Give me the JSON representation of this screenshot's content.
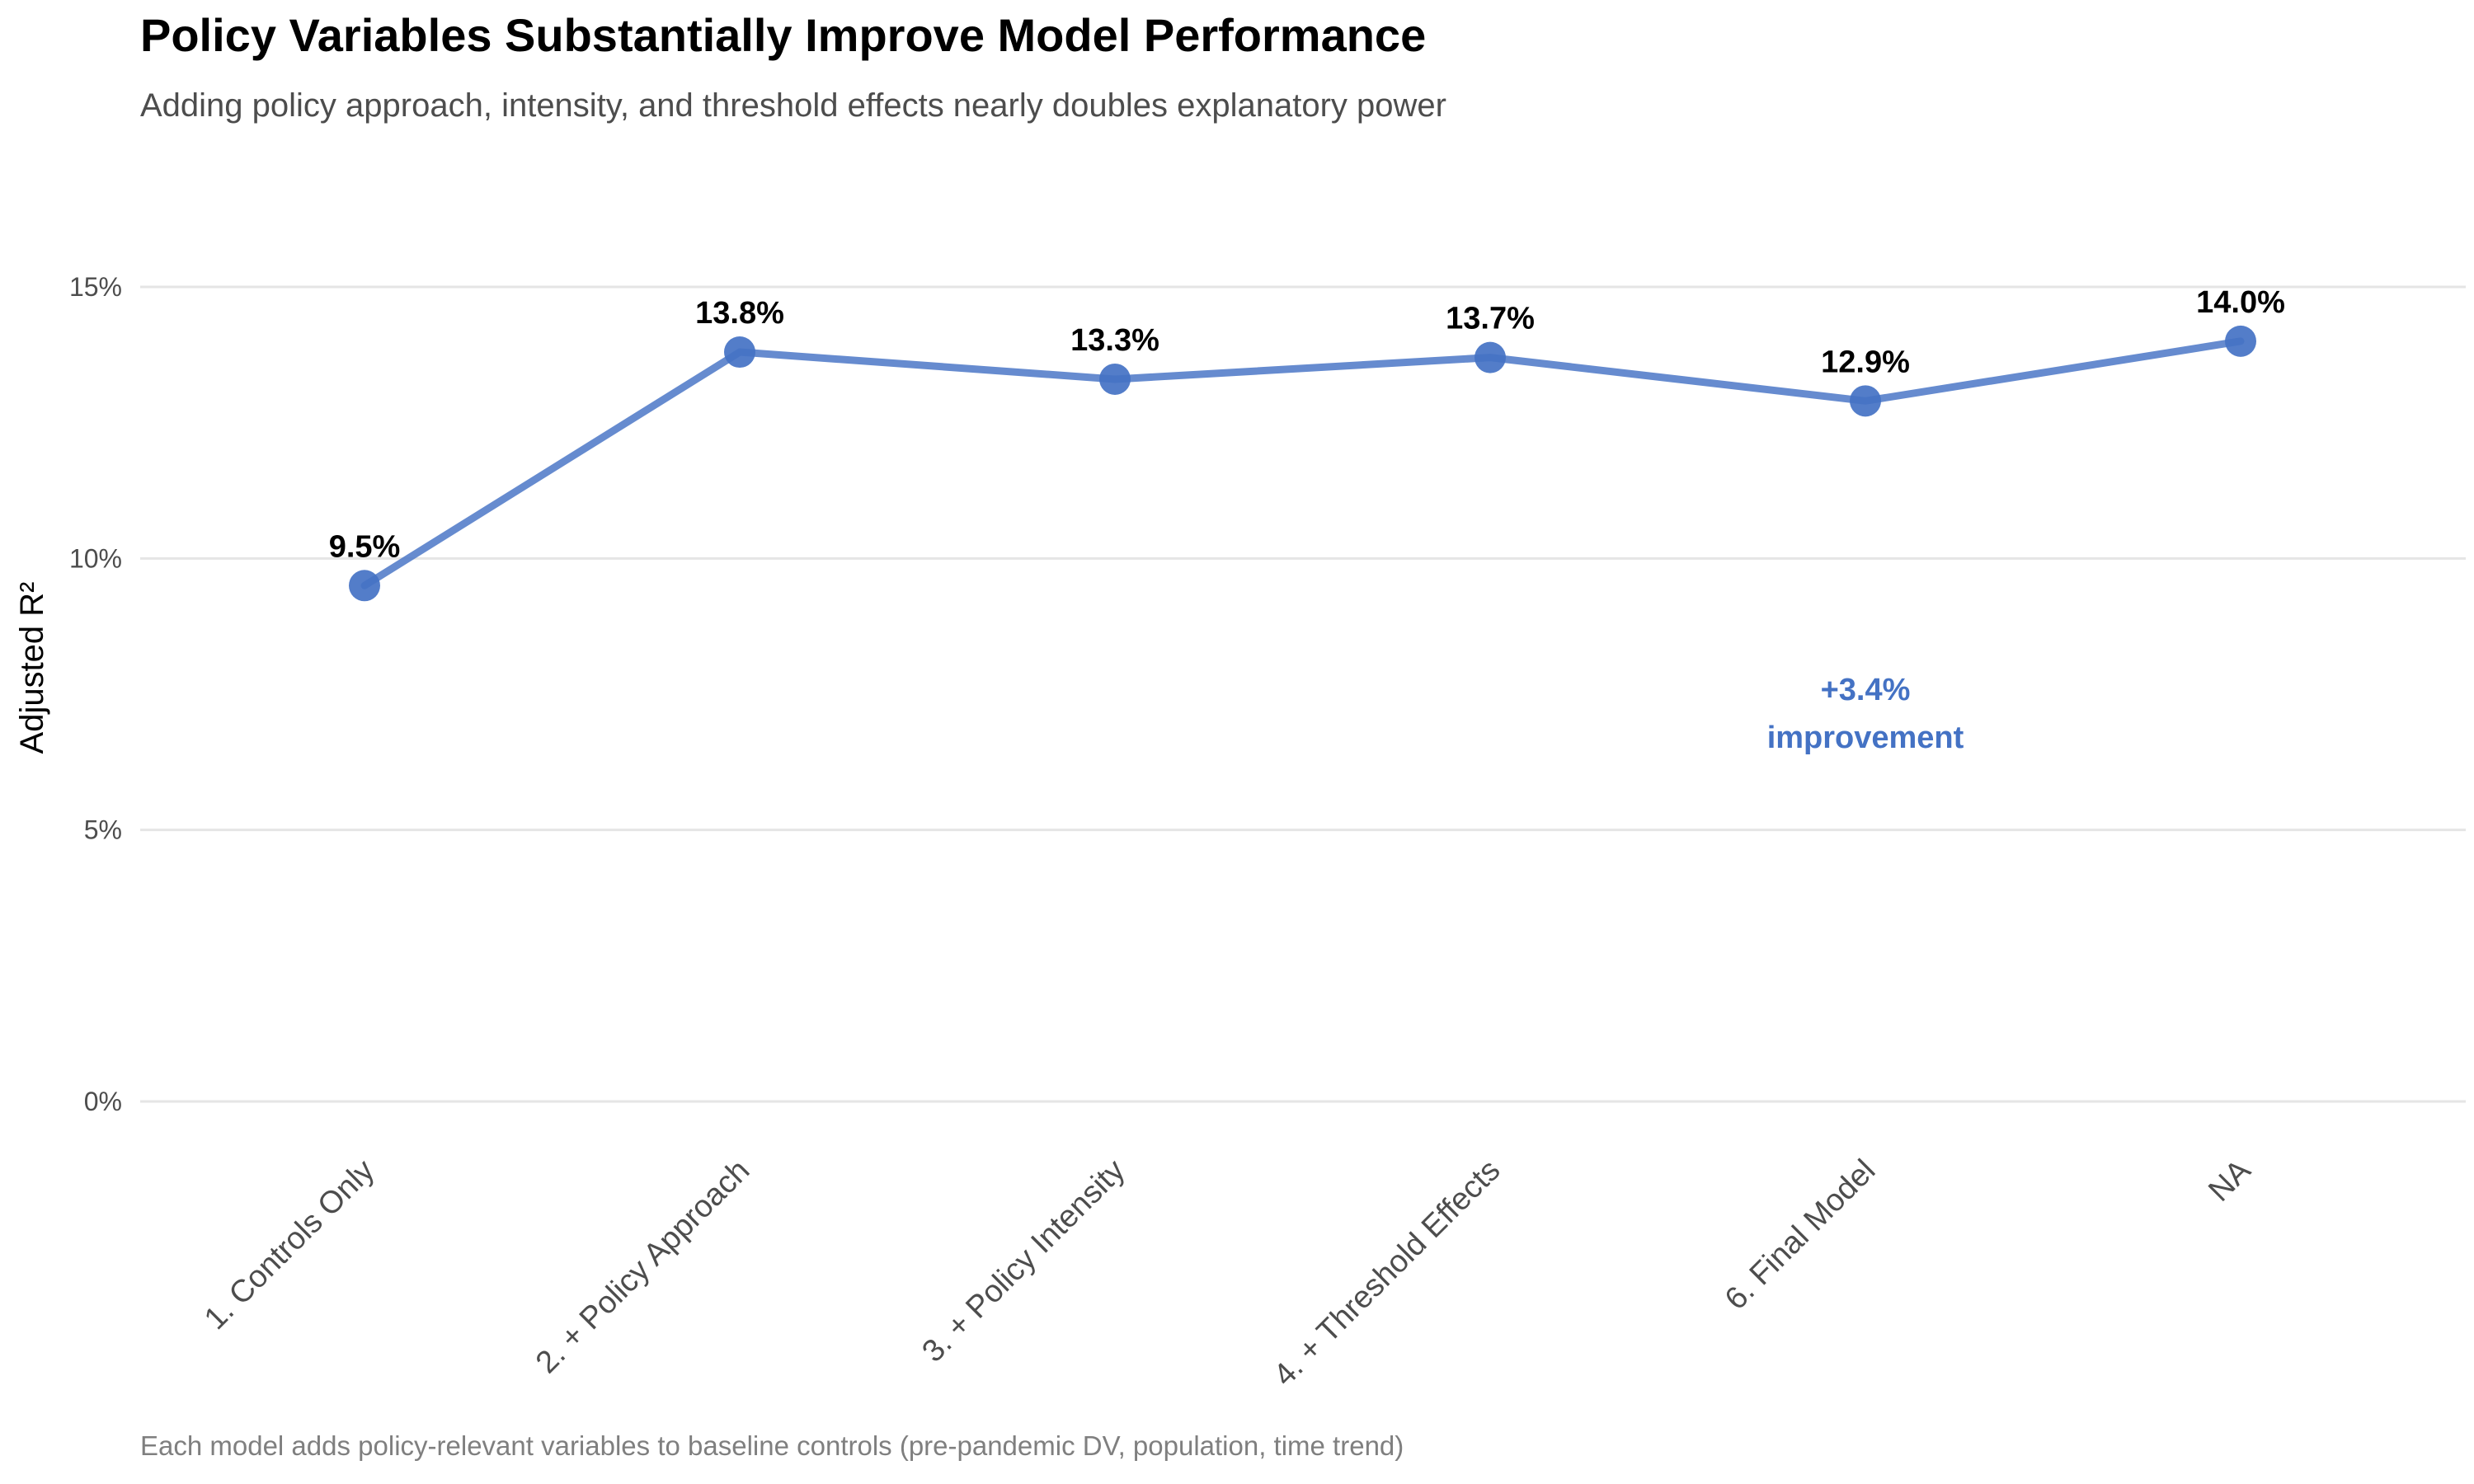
{
  "chart_data": {
    "type": "line",
    "title": "Policy Variables Substantially Improve Model Performance",
    "subtitle": "Adding policy approach, intensity, and threshold effects nearly doubles explanatory power",
    "caption": "Each model adds policy-relevant variables to baseline controls (pre-pandemic DV, population, time trend)",
    "xlabel": "",
    "ylabel": "Adjusted R²",
    "categories": [
      "1. Controls Only",
      "2. + Policy Approach",
      "3. + Policy Intensity",
      "4. + Threshold Effects",
      "6. Final Model",
      "NA"
    ],
    "values": [
      0.095,
      0.138,
      0.133,
      0.137,
      0.129,
      0.14
    ],
    "data_labels": [
      "9.5%",
      "13.8%",
      "13.3%",
      "13.7%",
      "12.9%",
      "14.0%"
    ],
    "ylim": [
      -0.005,
      0.15
    ],
    "yticks": [
      0,
      0.05,
      0.1,
      0.15
    ],
    "ytick_labels": [
      "0%",
      "5%",
      "10%",
      "15%"
    ],
    "grid": "horizontal",
    "legend": "none",
    "annotation": {
      "lines": [
        "+3.4%",
        "improvement"
      ],
      "category": "6. Final Model",
      "y": 0.07
    },
    "colors": {
      "line": "#4472C4",
      "point": "#4472C4",
      "annotation": "#4472C4",
      "grid": "#e5e5e5"
    }
  }
}
